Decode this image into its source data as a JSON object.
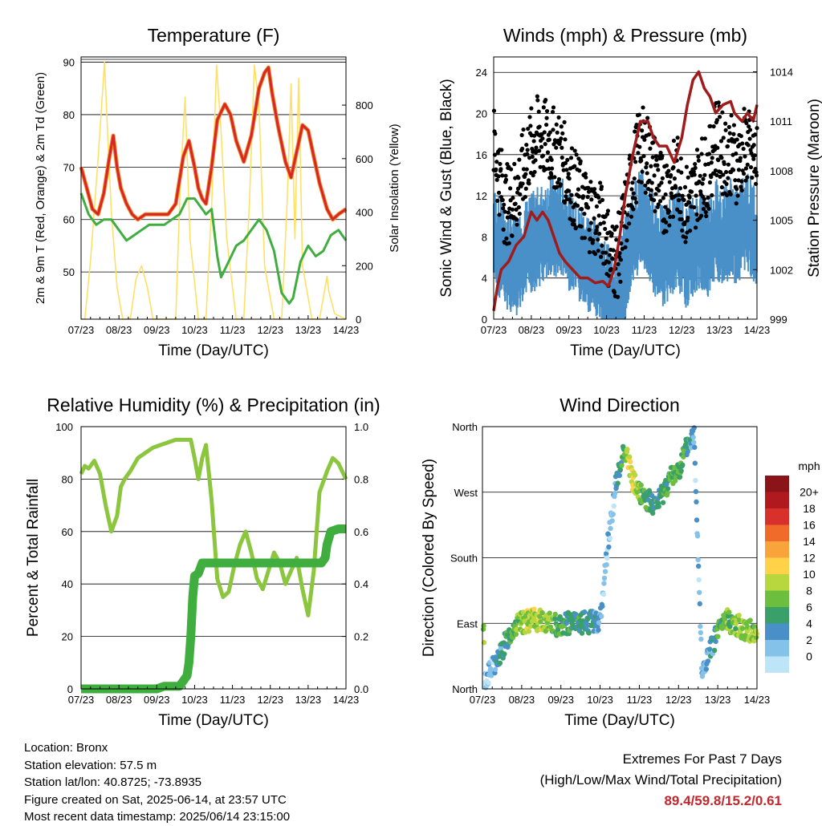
{
  "panels": [
    {
      "title": "Temperature (F)",
      "xlabel": "Time (Day/UTC)",
      "ylabel_left": "2m & 9m T (Red, Orange) & 2m Td (Green)",
      "ylabel_right": "Solar Insolation (Yellow)",
      "x_ticks": [
        "07/23",
        "08/23",
        "09/23",
        "10/23",
        "11/23",
        "12/23",
        "13/23",
        "14/23"
      ],
      "y_ticks_left": [
        "50",
        "60",
        "70",
        "80",
        "90"
      ],
      "y_ticks_right": [
        "0",
        "200",
        "400",
        "600",
        "800"
      ]
    },
    {
      "title": "Winds (mph) & Pressure (mb)",
      "xlabel": "Time (Day/UTC)",
      "ylabel_left": "Sonic Wind & Gust (Blue, Black)",
      "ylabel_right": "Station Pressure (Maroon)",
      "x_ticks": [
        "07/23",
        "08/23",
        "09/23",
        "10/23",
        "11/23",
        "12/23",
        "13/23",
        "14/23"
      ],
      "y_ticks_left": [
        "0",
        "4",
        "8",
        "12",
        "16",
        "20",
        "24"
      ],
      "y_ticks_right": [
        "999",
        "1002",
        "1005",
        "1008",
        "1011",
        "1014"
      ]
    },
    {
      "title": "Relative Humidity (%) & Precipitation (in)",
      "xlabel": "Time (Day/UTC)",
      "ylabel_left": "Percent & Total Rainfall",
      "x_ticks": [
        "07/23",
        "08/23",
        "09/23",
        "10/23",
        "11/23",
        "12/23",
        "13/23",
        "14/23"
      ],
      "y_ticks_left": [
        "0",
        "20",
        "40",
        "60",
        "80",
        "100"
      ],
      "y_ticks_right": [
        "0.0",
        "0.2",
        "0.4",
        "0.6",
        "0.8",
        "1.0"
      ]
    },
    {
      "title": "Wind Direction",
      "xlabel": "Time (Day/UTC)",
      "ylabel_left": "Direction (Colored By Speed)",
      "x_ticks": [
        "07/23",
        "08/23",
        "09/23",
        "10/23",
        "11/23",
        "12/23",
        "13/23",
        "14/23"
      ],
      "y_ticks_left": [
        "North",
        "East",
        "South",
        "West",
        "North"
      ]
    }
  ],
  "colorbar": {
    "title": "mph",
    "labels": [
      "0",
      "2",
      "4",
      "6",
      "8",
      "10",
      "12",
      "14",
      "16",
      "18",
      "20+"
    ],
    "colors": [
      "#bde4f7",
      "#85c2ea",
      "#4a90c8",
      "#3aa06a",
      "#6cbf3e",
      "#b8d63d",
      "#ffd24a",
      "#f9a43a",
      "#f06a2a",
      "#d8302a",
      "#b01a1e",
      "#8a1418"
    ]
  },
  "colors": {
    "temp_2m": "#d62728",
    "temp_9m": "#f28c28",
    "dewpoint": "#3fae3f",
    "solar": "#ffe066",
    "wind": "#4a90c8",
    "gust": "#000000",
    "pressure": "#a01c1c",
    "rh": "#8cc63f",
    "precip": "#3fae3f"
  },
  "footer": {
    "location": "Location: Bronx",
    "elevation": "Station elevation: 57.5 m",
    "latlon": "Station lat/lon: 40.8725; -73.8935",
    "created": "Figure created on Sat, 2025-06-14, at 23:57 UTC",
    "recent": "Most recent data timestamp: 2025/06/14 23:15:00",
    "extremes_title": "Extremes For Past 7 Days",
    "extremes_sub": "(High/Low/Max Wind/Total Precipitation)",
    "extremes_values": "89.4/59.8/15.2/0.61"
  },
  "chart_data": [
    {
      "type": "line",
      "title": "Temperature (F)",
      "xlabel": "Time (Day/UTC)",
      "ylabel": "2m & 9m T (Red, Orange) & 2m Td (Green)",
      "y2label": "Solar Insolation (Yellow)",
      "x_unit": "days since 07/23",
      "xlim": [
        0,
        7
      ],
      "ylim": [
        41,
        91
      ],
      "y2lim": [
        0,
        980
      ],
      "series": [
        {
          "name": "2m T",
          "axis": "left",
          "x": [
            0,
            0.15,
            0.3,
            0.45,
            0.6,
            0.75,
            0.85,
            0.95,
            1.05,
            1.2,
            1.35,
            1.5,
            1.7,
            1.9,
            2.1,
            2.3,
            2.5,
            2.7,
            2.85,
            3.0,
            3.1,
            3.2,
            3.3,
            3.45,
            3.6,
            3.8,
            3.95,
            4.1,
            4.3,
            4.5,
            4.7,
            4.85,
            4.95,
            5.05,
            5.2,
            5.4,
            5.55,
            5.7,
            5.85,
            6.0,
            6.15,
            6.3,
            6.5,
            6.65,
            6.8,
            7.0
          ],
          "y": [
            70,
            66,
            62,
            61,
            65,
            72,
            76,
            70,
            66,
            63,
            61,
            60,
            61,
            61,
            61,
            61,
            63,
            72,
            75,
            70,
            66,
            64,
            63,
            70,
            79,
            82,
            80,
            75,
            71,
            76,
            85,
            88,
            89,
            84,
            78,
            71,
            68,
            73,
            78,
            77,
            72,
            67,
            62,
            60,
            61,
            62
          ]
        },
        {
          "name": "Td",
          "axis": "left",
          "x": [
            0,
            0.2,
            0.4,
            0.6,
            0.8,
            1.0,
            1.2,
            1.4,
            1.6,
            1.8,
            2.0,
            2.2,
            2.4,
            2.6,
            2.8,
            2.9,
            3.0,
            3.1,
            3.3,
            3.45,
            3.6,
            3.7,
            3.9,
            4.1,
            4.3,
            4.5,
            4.7,
            4.9,
            5.1,
            5.3,
            5.5,
            5.6,
            5.8,
            6.0,
            6.2,
            6.4,
            6.6,
            6.8,
            7.0
          ],
          "y": [
            65,
            61,
            59,
            60,
            60,
            58,
            56,
            57,
            58,
            59,
            59,
            59,
            60,
            61,
            64,
            64,
            64,
            63,
            61,
            62,
            53,
            49,
            52,
            55,
            56,
            58,
            60,
            58,
            54,
            46,
            44,
            45,
            52,
            55,
            53,
            54,
            57,
            58,
            56
          ]
        },
        {
          "name": "Solar Insolation",
          "axis": "right",
          "x": [
            0,
            0.1,
            0.25,
            0.45,
            0.62,
            0.7,
            0.8,
            0.95,
            1.1,
            1.3,
            1.45,
            1.6,
            1.75,
            1.9,
            2.1,
            2.3,
            2.5,
            2.62,
            2.75,
            2.88,
            3.1,
            3.3,
            3.45,
            3.58,
            3.7,
            3.85,
            4.1,
            4.3,
            4.45,
            4.58,
            4.7,
            4.85,
            5.1,
            5.3,
            5.45,
            5.55,
            5.65,
            5.75,
            5.85,
            6.1,
            6.3,
            6.4,
            6.5,
            6.55,
            6.7,
            7.0
          ],
          "y": [
            0,
            0,
            220,
            600,
            960,
            700,
            400,
            120,
            0,
            0,
            150,
            200,
            120,
            0,
            0,
            0,
            0,
            500,
            830,
            300,
            0,
            0,
            420,
            950,
            700,
            300,
            0,
            0,
            440,
            950,
            800,
            200,
            0,
            0,
            450,
            880,
            300,
            900,
            200,
            0,
            0,
            80,
            160,
            100,
            20,
            0
          ]
        }
      ]
    },
    {
      "type": "line",
      "title": "Winds (mph) & Pressure (mb)",
      "xlabel": "Time (Day/UTC)",
      "ylabel": "Sonic Wind & Gust (Blue, Black)",
      "y2label": "Station Pressure (Maroon)",
      "x_unit": "days since 07/23",
      "xlim": [
        0,
        7
      ],
      "ylim": [
        0,
        25.5
      ],
      "y2lim": [
        999,
        1014.9
      ],
      "series": [
        {
          "name": "Sonic Wind",
          "axis": "left",
          "x": [
            0,
            0.3,
            0.6,
            0.9,
            1.2,
            1.5,
            1.8,
            2.1,
            2.4,
            2.7,
            2.95,
            3.1,
            3.3,
            3.5,
            3.7,
            3.9,
            4.1,
            4.3,
            4.5,
            4.7,
            4.9,
            5.1,
            5.3,
            5.5,
            5.7,
            5.9,
            6.1,
            6.3,
            6.5,
            6.7,
            7.0
          ],
          "y": [
            8,
            6,
            5,
            7,
            8,
            9,
            9,
            7,
            6,
            5,
            3,
            2,
            2,
            5,
            8,
            10,
            9,
            7,
            6,
            7,
            8,
            6,
            7,
            8,
            7,
            9,
            8,
            9,
            8,
            10,
            8
          ]
        },
        {
          "name": "Gust",
          "axis": "left",
          "x": [
            0,
            0.3,
            0.6,
            0.9,
            1.2,
            1.5,
            1.8,
            2.1,
            2.4,
            2.7,
            2.95,
            3.1,
            3.3,
            3.5,
            3.7,
            3.9,
            4.1,
            4.3,
            4.5,
            4.7,
            4.9,
            5.1,
            5.3,
            5.5,
            5.7,
            5.9,
            6.1,
            6.3,
            6.5,
            6.7,
            7.0
          ],
          "y": [
            17,
            11,
            12,
            16,
            18,
            17,
            16,
            13,
            11,
            10,
            9,
            6,
            6,
            10,
            14,
            17,
            16,
            14,
            12,
            13,
            14,
            11,
            12,
            14,
            14,
            18,
            16,
            16,
            15,
            17,
            15
          ]
        },
        {
          "name": "Station Pressure",
          "axis": "right",
          "x": [
            0,
            0.1,
            0.2,
            0.4,
            0.6,
            0.8,
            1.0,
            1.15,
            1.3,
            1.45,
            1.6,
            1.75,
            1.9,
            2.1,
            2.3,
            2.5,
            2.7,
            2.9,
            3.05,
            3.2,
            3.35,
            3.5,
            3.7,
            3.9,
            4.1,
            4.25,
            4.4,
            4.6,
            4.8,
            5.0,
            5.15,
            5.3,
            5.45,
            5.6,
            5.75,
            5.9,
            6.1,
            6.3,
            6.4,
            6.6,
            6.75,
            6.9,
            7.0
          ],
          "y": [
            999.5,
            1001,
            1002,
            1002.5,
            1003.5,
            1004,
            1005.5,
            1005,
            1005.5,
            1005,
            1004,
            1003,
            1002.5,
            1002,
            1001.5,
            1001.5,
            1001.2,
            1001.3,
            1001,
            1002,
            1004,
            1006.5,
            1009,
            1011,
            1011,
            1010,
            1009.5,
            1009.5,
            1008.5,
            1010,
            1012,
            1013.5,
            1014,
            1013,
            1012.5,
            1011.5,
            1012,
            1012.2,
            1011.5,
            1011,
            1011.5,
            1011,
            1012
          ]
        }
      ]
    },
    {
      "type": "line",
      "title": "Relative Humidity (%) & Precipitation (in)",
      "xlabel": "Time (Day/UTC)",
      "ylabel": "Percent & Total Rainfall",
      "x_unit": "days since 07/23",
      "xlim": [
        0,
        7
      ],
      "ylim": [
        0,
        100
      ],
      "y2lim": [
        0,
        1.0
      ],
      "series": [
        {
          "name": "Relative Humidity",
          "axis": "left",
          "x": [
            0,
            0.1,
            0.2,
            0.35,
            0.5,
            0.65,
            0.8,
            0.95,
            1.05,
            1.15,
            1.3,
            1.5,
            1.7,
            1.9,
            2.1,
            2.3,
            2.5,
            2.7,
            2.9,
            3.0,
            3.1,
            3.2,
            3.3,
            3.45,
            3.6,
            3.75,
            3.9,
            4.05,
            4.2,
            4.35,
            4.5,
            4.65,
            4.8,
            4.95,
            5.1,
            5.25,
            5.4,
            5.55,
            5.7,
            5.85,
            6.0,
            6.15,
            6.3,
            6.5,
            6.65,
            6.8,
            7.0
          ],
          "y": [
            82,
            85,
            84,
            87,
            82,
            70,
            60,
            66,
            77,
            80,
            83,
            88,
            90,
            92,
            93,
            94,
            95,
            95,
            95,
            88,
            80,
            88,
            93,
            72,
            42,
            35,
            37,
            47,
            55,
            60,
            52,
            42,
            38,
            45,
            52,
            48,
            40,
            45,
            50,
            38,
            28,
            45,
            75,
            83,
            88,
            86,
            80
          ]
        },
        {
          "name": "Total Precipitation",
          "axis": "right",
          "x": [
            0,
            0.5,
            1.0,
            1.5,
            2.0,
            2.2,
            2.4,
            2.6,
            2.7,
            2.8,
            2.85,
            2.9,
            2.95,
            3.0,
            3.1,
            3.2,
            3.5,
            4.0,
            4.5,
            5.0,
            5.5,
            6.0,
            6.35,
            6.45,
            6.5,
            6.6,
            6.8,
            7.0
          ],
          "y": [
            0,
            0,
            0,
            0,
            0,
            0.01,
            0.01,
            0.01,
            0.03,
            0.05,
            0.1,
            0.2,
            0.35,
            0.43,
            0.44,
            0.48,
            0.48,
            0.48,
            0.48,
            0.48,
            0.48,
            0.48,
            0.48,
            0.5,
            0.55,
            0.6,
            0.61,
            0.61
          ]
        }
      ]
    },
    {
      "type": "scatter",
      "title": "Wind Direction",
      "xlabel": "Time (Day/UTC)",
      "ylabel": "Direction (Colored By Speed)",
      "x_unit": "days since 07/23",
      "xlim": [
        0,
        7
      ],
      "y_unit": "degrees from North",
      "ylim": [
        0,
        360
      ],
      "series": [
        {
          "name": "Direction",
          "x": [
            0.05,
            0.2,
            0.4,
            0.6,
            0.8,
            1.0,
            1.3,
            1.6,
            1.9,
            2.2,
            2.5,
            2.8,
            3.0,
            3.05,
            3.1,
            3.2,
            3.3,
            3.4,
            3.5,
            3.6,
            3.7,
            3.8,
            3.9,
            4.0,
            4.2,
            4.4,
            4.6,
            4.8,
            5.0,
            5.2,
            5.4,
            5.6,
            5.8,
            6.0,
            6.2,
            6.4,
            6.6,
            6.8,
            7.0
          ],
          "y": [
            10,
            25,
            40,
            65,
            85,
            90,
            95,
            92,
            88,
            90,
            90,
            92,
            95,
            110,
            150,
            200,
            240,
            280,
            300,
            330,
            320,
            290,
            280,
            270,
            260,
            250,
            270,
            290,
            300,
            330,
            350,
            20,
            50,
            80,
            95,
            90,
            85,
            80,
            75
          ],
          "speed": [
            2,
            3,
            5,
            7,
            9,
            10,
            11,
            10,
            8,
            7,
            6,
            6,
            4,
            3,
            2,
            3,
            2,
            4,
            6,
            8,
            10,
            12,
            11,
            9,
            7,
            6,
            7,
            8,
            8,
            6,
            4,
            3,
            5,
            7,
            8,
            9,
            10,
            10,
            9
          ]
        }
      ]
    }
  ]
}
